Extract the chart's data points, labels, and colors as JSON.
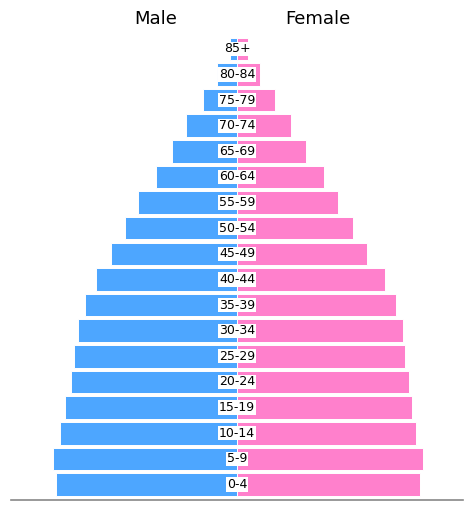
{
  "age_groups": [
    "0-4",
    "5-9",
    "10-14",
    "15-19",
    "20-24",
    "25-29",
    "30-34",
    "35-39",
    "40-44",
    "45-49",
    "50-54",
    "55-59",
    "60-64",
    "65-69",
    "70-74",
    "75-79",
    "80-84",
    "85+"
  ],
  "male_values": [
    10.0,
    10.2,
    9.8,
    9.5,
    9.2,
    9.0,
    8.8,
    8.4,
    7.8,
    7.0,
    6.2,
    5.5,
    4.5,
    3.6,
    2.8,
    1.9,
    1.1,
    0.4
  ],
  "female_values": [
    10.1,
    10.3,
    9.9,
    9.7,
    9.5,
    9.3,
    9.2,
    8.8,
    8.2,
    7.2,
    6.4,
    5.6,
    4.8,
    3.8,
    3.0,
    2.1,
    1.3,
    0.6
  ],
  "male_color": "#4da6ff",
  "female_color": "#ff80cc",
  "bar_edge_color": "#ffffff",
  "background_color": "#ffffff",
  "male_label": "Male",
  "female_label": "Female",
  "label_fontsize": 13,
  "tick_fontsize": 9,
  "bar_height": 0.88,
  "xlim": 12.5
}
